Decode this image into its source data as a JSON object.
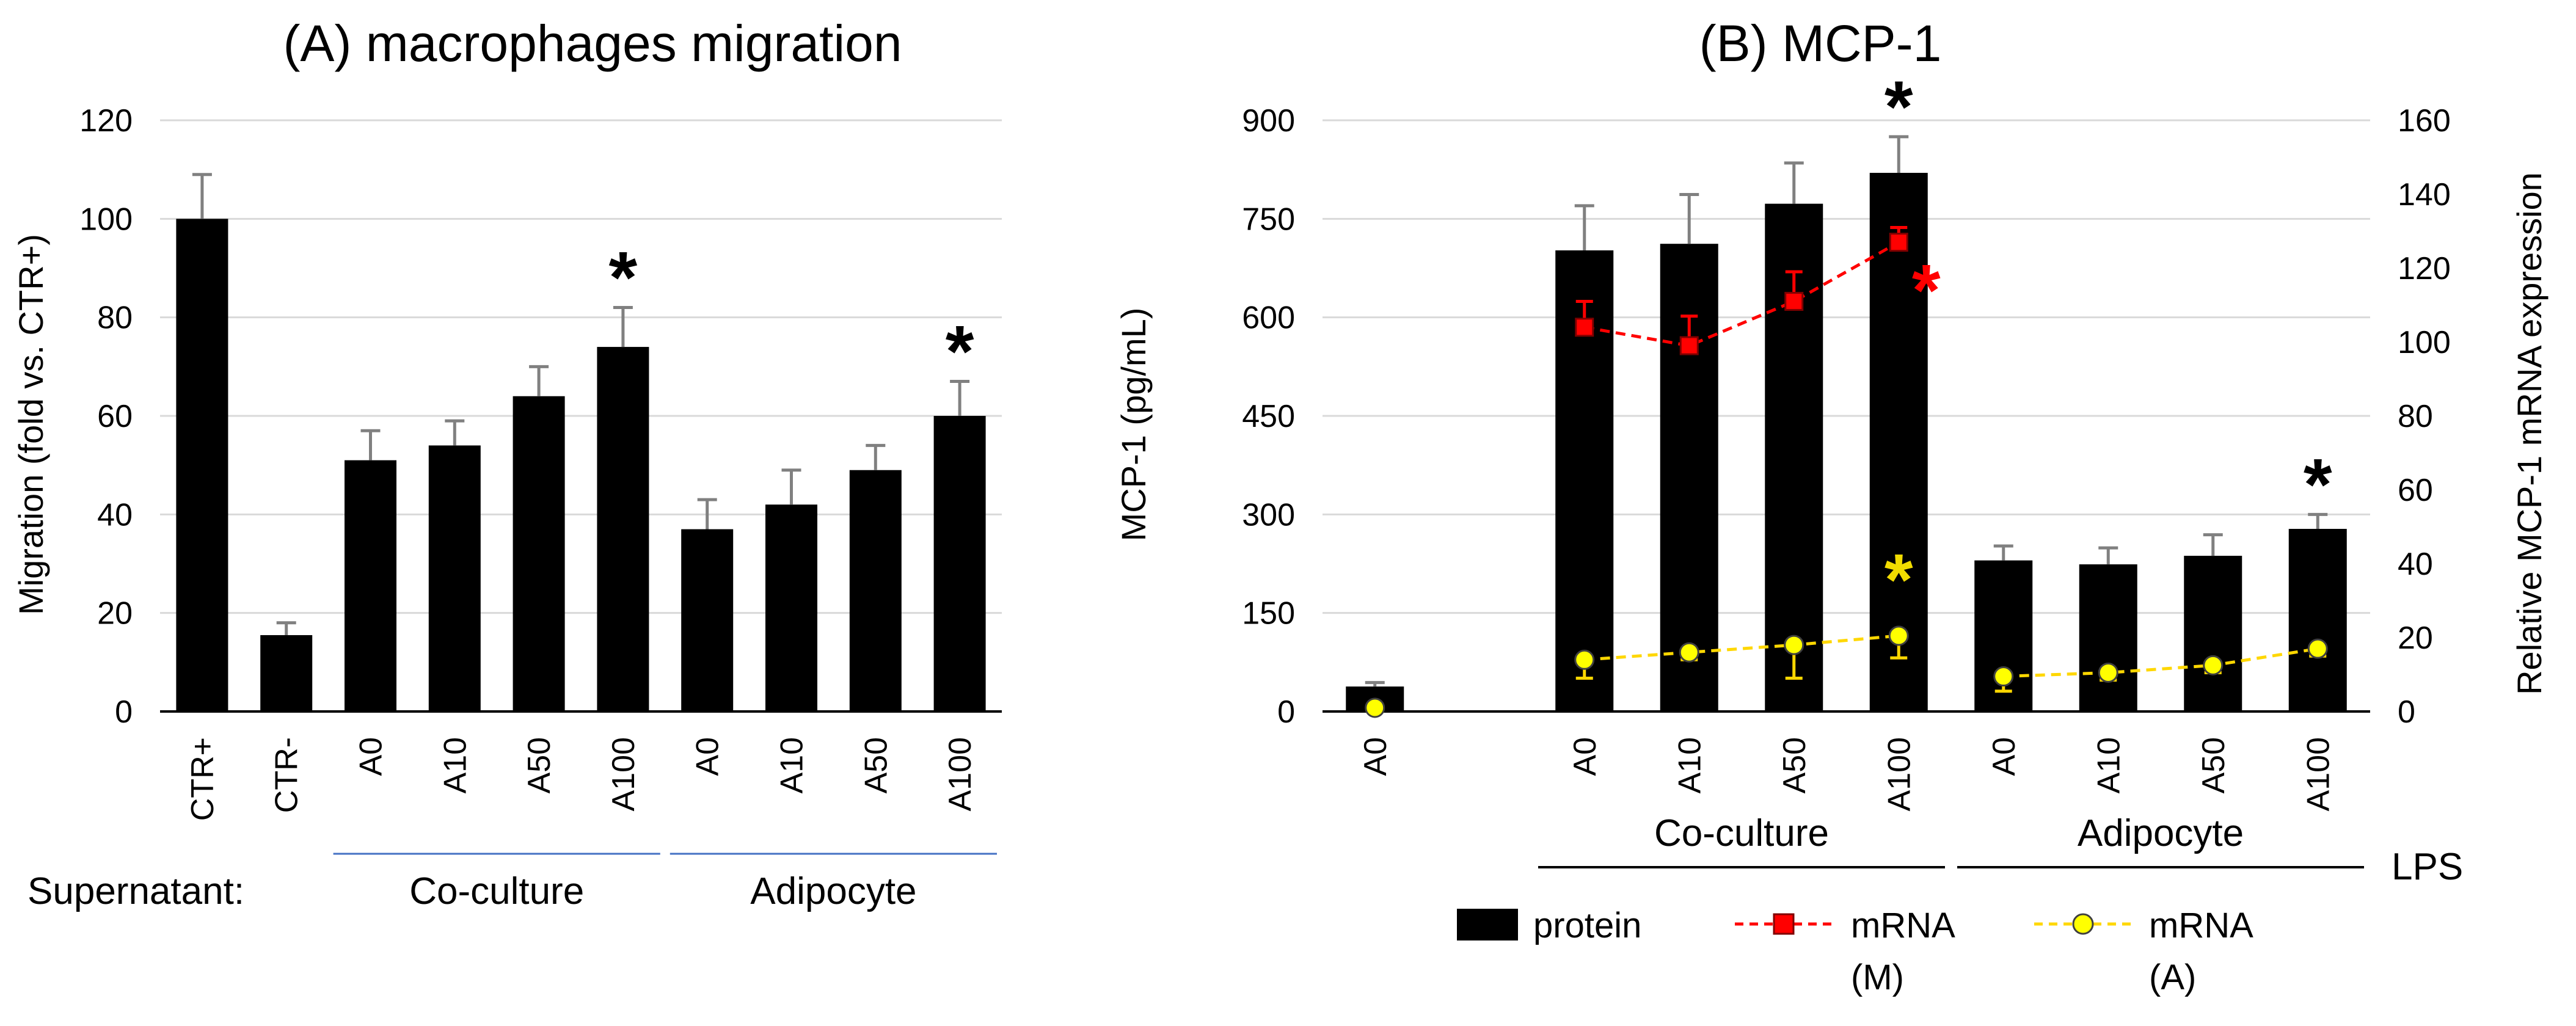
{
  "chart_data": [
    {
      "id": "A",
      "type": "bar",
      "title": "(A) macrophages migration",
      "ylabel": "Migration (fold vs. CTR+)",
      "ylim": [
        0,
        120
      ],
      "yticks": [
        "0",
        "20",
        "40",
        "60",
        "80",
        "100",
        "120"
      ],
      "grid": true,
      "categories": [
        "CTR+",
        "CTR-",
        "A0",
        "A10",
        "A50",
        "A100",
        "A0",
        "A10",
        "A50",
        "A100"
      ],
      "values": [
        100,
        15.5,
        51,
        54,
        64,
        74,
        37,
        42,
        49,
        60
      ],
      "errors": [
        9,
        2.5,
        6,
        5,
        6,
        8,
        6,
        7,
        5,
        7
      ],
      "significant": [
        false,
        false,
        false,
        false,
        false,
        true,
        false,
        false,
        false,
        true
      ],
      "significance_marker": "*",
      "row_label": "Supernatant:",
      "groups": [
        {
          "label": "Co-culture",
          "from": 2,
          "to": 5
        },
        {
          "label": "Adipocyte",
          "from": 6,
          "to": 9
        }
      ],
      "colors": {
        "bar": "#000000",
        "error": "#808080",
        "grid": "#d9d9d9",
        "group_line": "#4472c4"
      }
    },
    {
      "id": "B",
      "type": "bar",
      "title": "(B) MCP-1",
      "ylabel": "MCP-1 (pg/mL)",
      "ylabel_right": "Relative MCP-1  mRNA expression",
      "ylim": [
        0,
        900
      ],
      "ylim_right": [
        0,
        160
      ],
      "yticks": [
        "0",
        "150",
        "300",
        "450",
        "600",
        "750",
        "900"
      ],
      "yticks_right": [
        "0",
        "20",
        "40",
        "60",
        "80",
        "100",
        "120",
        "140",
        "160"
      ],
      "grid": true,
      "categories": [
        "A0",
        "",
        "A0",
        "A10",
        "A50",
        "A100",
        "A0",
        "A10",
        "A50",
        "A100"
      ],
      "series": [
        {
          "name": "protein",
          "kind": "bar",
          "axis": "left",
          "values": [
            38,
            null,
            702,
            712,
            773,
            820,
            230,
            224,
            237,
            278
          ],
          "errors": [
            6,
            null,
            68,
            75,
            62,
            55,
            22,
            25,
            32,
            22
          ],
          "color": "#000000"
        },
        {
          "name": "mRNA\n(M)",
          "kind": "line",
          "axis": "right",
          "marker": "square",
          "values": [
            null,
            null,
            104,
            99,
            111,
            127,
            null,
            null,
            null,
            null
          ],
          "errors": [
            null,
            null,
            7,
            8,
            8,
            4,
            null,
            null,
            null,
            null
          ],
          "color": "#ff0000"
        },
        {
          "name": "mRNA\n(A)",
          "kind": "line",
          "axis": "right",
          "marker": "circle",
          "values": [
            1,
            null,
            14,
            16,
            18,
            20.5,
            9.5,
            10.5,
            12.5,
            17
          ],
          "errors": [
            0,
            null,
            5,
            2,
            9,
            6,
            4,
            2,
            2,
            2
          ],
          "color": "#ffff00"
        }
      ],
      "significance": [
        {
          "index": 5,
          "series": "protein",
          "marker": "*",
          "color": "#000000"
        },
        {
          "index": 5,
          "series": "mRNA (M)",
          "marker": "*",
          "color": "#ff0000"
        },
        {
          "index": 5,
          "series": "mRNA (A)",
          "marker": "*",
          "color": "#f2dc00"
        },
        {
          "index": 9,
          "series": "protein",
          "marker": "*",
          "color": "#000000"
        }
      ],
      "groups": [
        {
          "label": "Co-culture",
          "from": 2,
          "to": 5
        },
        {
          "label": "Adipocyte",
          "from": 6,
          "to": 9
        }
      ],
      "row_label": "LPS",
      "legend": [
        {
          "label": "protein",
          "kind": "bar"
        },
        {
          "label_line1": "mRNA",
          "label_line2": "(M)",
          "kind": "line-square"
        },
        {
          "label_line1": "mRNA",
          "label_line2": "(A)",
          "kind": "line-circle"
        }
      ],
      "colors": {
        "error": "#808080",
        "grid": "#d9d9d9",
        "red_error": "#ff0000",
        "yellow_error": "#ffd700"
      }
    }
  ]
}
